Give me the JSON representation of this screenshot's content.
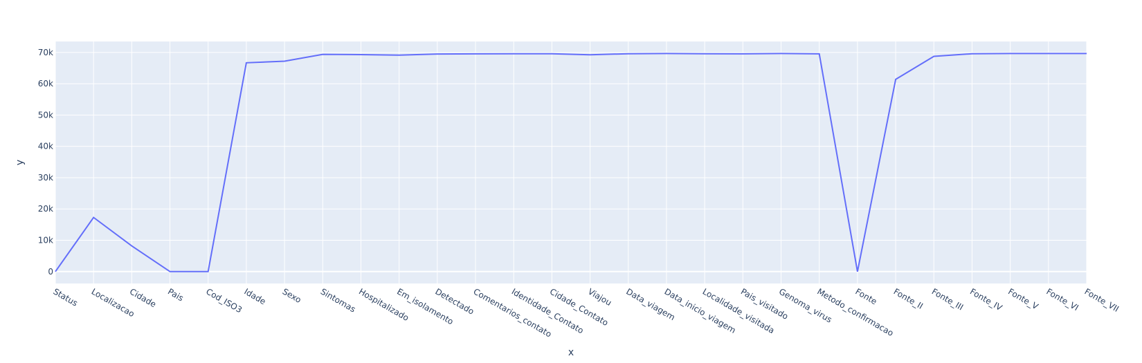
{
  "chart_data": {
    "type": "line",
    "title": "",
    "xlabel": "x",
    "ylabel": "y",
    "ylim": [
      -3800,
      73500
    ],
    "yticks": [
      0,
      10000,
      20000,
      30000,
      40000,
      50000,
      60000,
      70000
    ],
    "ytick_labels": [
      "0",
      "10k",
      "20k",
      "30k",
      "40k",
      "50k",
      "60k",
      "70k"
    ],
    "grid": true,
    "legend": "none",
    "colors": {
      "line": "#636efa",
      "plot_bg": "#e5ecf6",
      "grid": "#ffffff",
      "text": "#2a3f5f"
    },
    "categories": [
      "Status",
      "Localizacao",
      "Cidade",
      "Pais",
      "Cod_ISO3",
      "Idade",
      "Sexo",
      "Sintomas",
      "Hospitalizado",
      "Em_isolamento",
      "Detectado",
      "Comentarios_contato",
      "Identidade_Contato",
      "Cidade_Contato",
      "Viajou",
      "Data_viagem",
      "Data_inicio_viagem",
      "Localidade_visitada",
      "Pais_visitado",
      "Genoma_virus",
      "Metodo_confirmacao",
      "Fonte",
      "Fonte_II",
      "Fonte_III",
      "Fonte_IV",
      "Fonte_V",
      "Fonte_VI",
      "Fonte_VII"
    ],
    "series": [
      {
        "values": [
          0,
          17300,
          8200,
          0,
          0,
          66700,
          67200,
          69400,
          69300,
          69150,
          69500,
          69550,
          69600,
          69600,
          69250,
          69600,
          69650,
          69600,
          69550,
          69650,
          69550,
          0,
          61400,
          68750,
          69600,
          69650,
          69650,
          69650
        ]
      }
    ]
  }
}
